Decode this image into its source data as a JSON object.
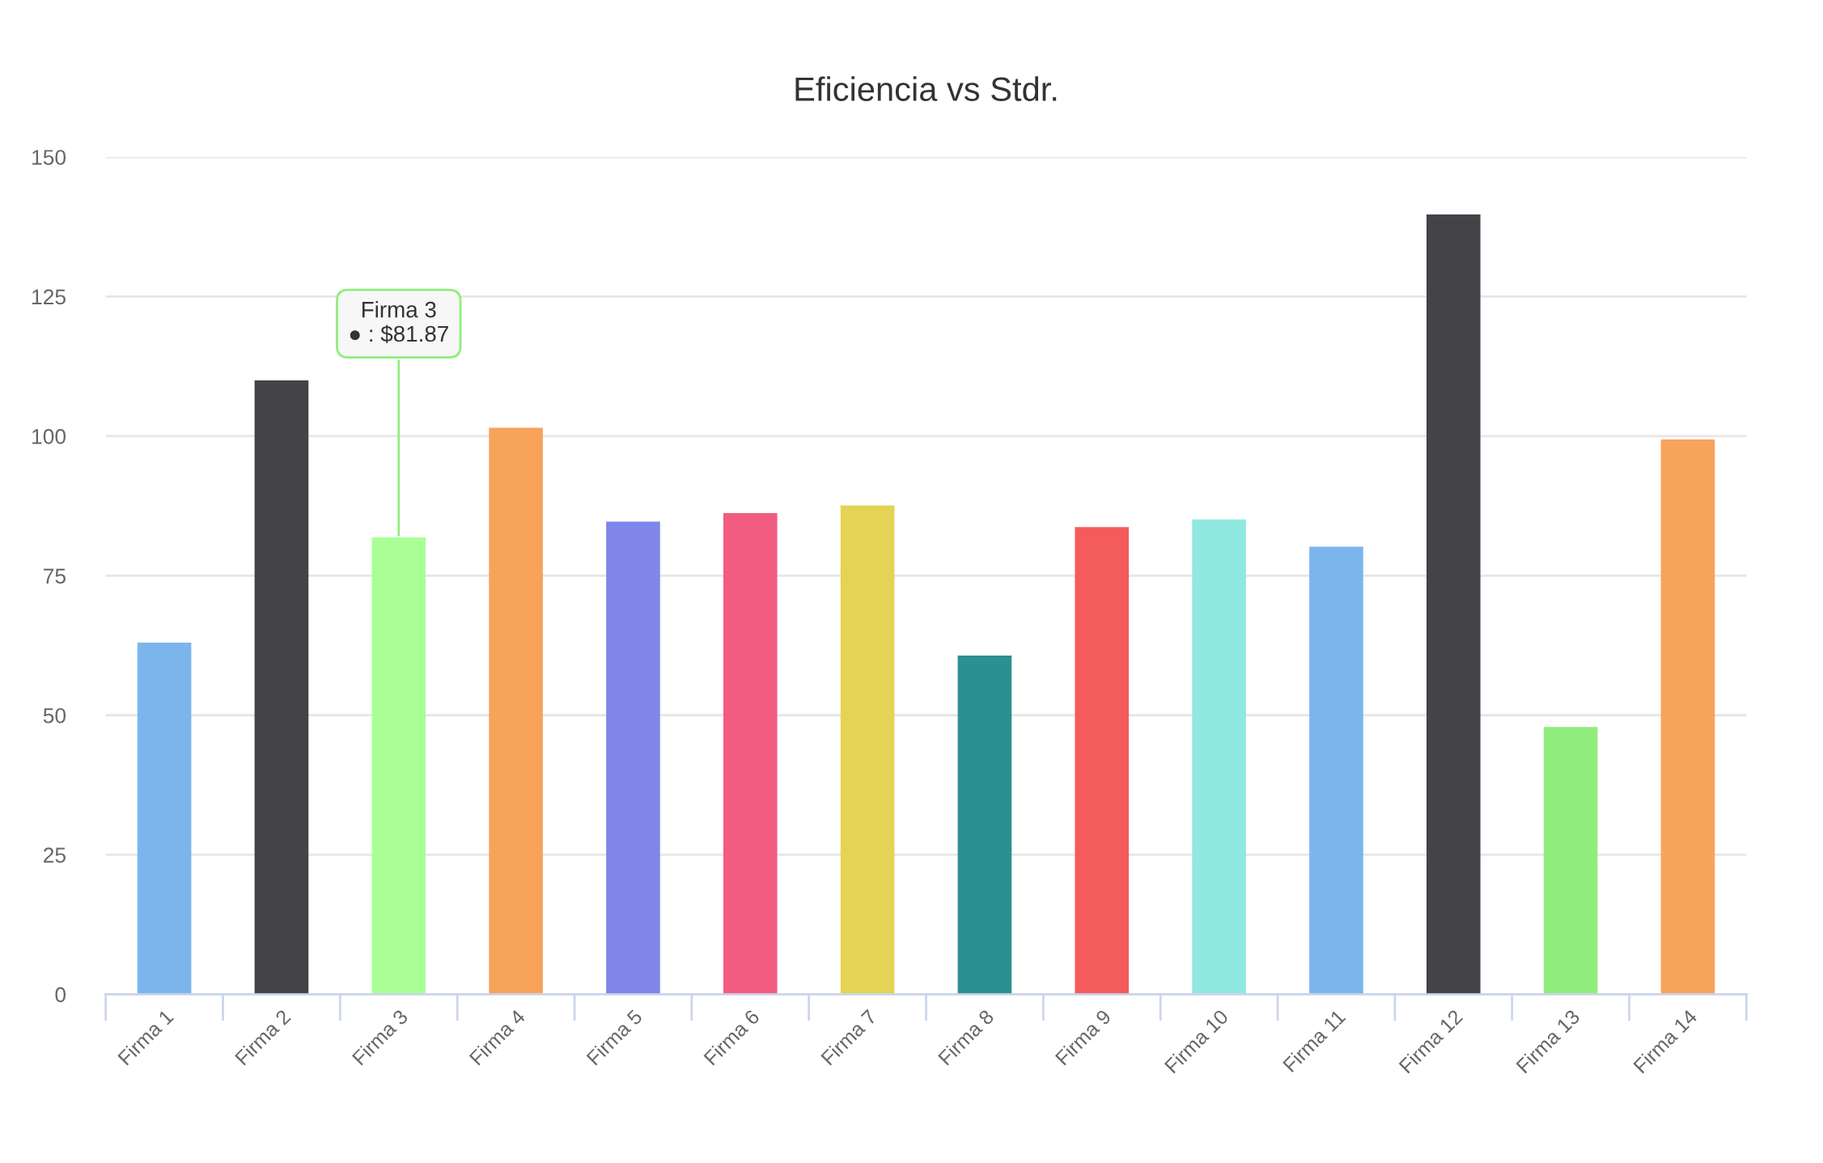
{
  "chart_data": {
    "type": "bar",
    "title": "Eficiencia vs Stdr.",
    "categories": [
      "Firma 1",
      "Firma 2",
      "Firma 3",
      "Firma 4",
      "Firma 5",
      "Firma 6",
      "Firma 7",
      "Firma 8",
      "Firma 9",
      "Firma 10",
      "Firma 11",
      "Firma 12",
      "Firma 13",
      "Firma 14"
    ],
    "values": [
      63,
      110,
      81.87,
      101.5,
      84.7,
      86.2,
      87.6,
      60.7,
      83.7,
      85.1,
      80.2,
      139.7,
      47.9,
      99.4
    ],
    "colors": [
      "#7cb5ec",
      "#434348",
      "#a9ff96",
      "#f7a35c",
      "#8085e9",
      "#f15c80",
      "#e4d354",
      "#2b908f",
      "#f45b5b",
      "#91e8e1",
      "#7cb5ec",
      "#434348",
      "#90ed7d",
      "#f7a35c"
    ],
    "ylim": [
      0,
      150
    ],
    "yticks": [
      0,
      25,
      50,
      75,
      100,
      125,
      150
    ],
    "grid": "y",
    "annotations": [
      {
        "text": "Firma 3\n● : $81.87",
        "x": "Firma 3",
        "y": 81.87
      }
    ]
  }
}
